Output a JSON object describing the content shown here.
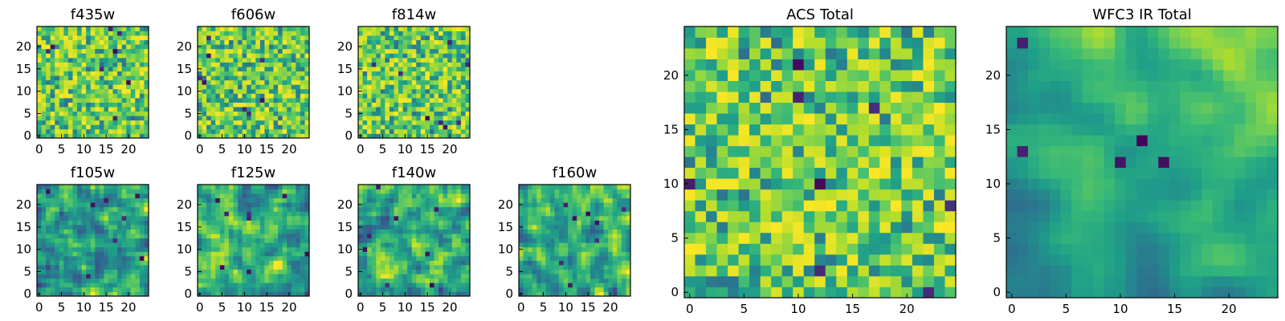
{
  "chart_data": [
    {
      "type": "heatmap",
      "title": "f435w",
      "size": 25,
      "xlim": [
        0,
        24
      ],
      "ylim": [
        0,
        24
      ],
      "xticks": [
        "0",
        "5",
        "10",
        "15",
        "20"
      ],
      "yticks": [
        "0",
        "5",
        "10",
        "15",
        "20"
      ],
      "colormap": "viridis",
      "texture": "noise",
      "seed": 11
    },
    {
      "type": "heatmap",
      "title": "f606w",
      "size": 25,
      "xlim": [
        0,
        24
      ],
      "ylim": [
        0,
        24
      ],
      "xticks": [
        "0",
        "5",
        "10",
        "15",
        "20"
      ],
      "yticks": [
        "0",
        "5",
        "10",
        "15",
        "20"
      ],
      "colormap": "viridis",
      "texture": "noise",
      "seed": 23
    },
    {
      "type": "heatmap",
      "title": "f814w",
      "size": 25,
      "xlim": [
        0,
        24
      ],
      "ylim": [
        0,
        24
      ],
      "xticks": [
        "0",
        "5",
        "10",
        "15",
        "20"
      ],
      "yticks": [
        "0",
        "5",
        "10",
        "15",
        "20"
      ],
      "colormap": "viridis",
      "texture": "noise",
      "seed": 37
    },
    {
      "type": "heatmap",
      "title": "f105w",
      "size": 25,
      "xlim": [
        0,
        24
      ],
      "ylim": [
        0,
        24
      ],
      "xticks": [
        "0",
        "5",
        "10",
        "15",
        "20"
      ],
      "yticks": [
        "0",
        "5",
        "10",
        "15",
        "20"
      ],
      "colormap": "viridis",
      "texture": "smooth",
      "seed": 41
    },
    {
      "type": "heatmap",
      "title": "f125w",
      "size": 25,
      "xlim": [
        0,
        24
      ],
      "ylim": [
        0,
        24
      ],
      "xticks": [
        "0",
        "5",
        "10",
        "15",
        "20"
      ],
      "yticks": [
        "0",
        "5",
        "10",
        "15",
        "20"
      ],
      "colormap": "viridis",
      "texture": "smooth",
      "seed": 53
    },
    {
      "type": "heatmap",
      "title": "f140w",
      "size": 25,
      "xlim": [
        0,
        24
      ],
      "ylim": [
        0,
        24
      ],
      "xticks": [
        "0",
        "5",
        "10",
        "15",
        "20"
      ],
      "yticks": [
        "0",
        "5",
        "10",
        "15",
        "20"
      ],
      "colormap": "viridis",
      "texture": "smooth",
      "seed": 67
    },
    {
      "type": "heatmap",
      "title": "f160w",
      "size": 25,
      "xlim": [
        0,
        24
      ],
      "ylim": [
        0,
        24
      ],
      "xticks": [
        "0",
        "5",
        "10",
        "15",
        "20"
      ],
      "yticks": [
        "0",
        "5",
        "10",
        "15",
        "20"
      ],
      "colormap": "viridis",
      "texture": "smooth",
      "seed": 79
    },
    {
      "type": "heatmap",
      "title": "ACS Total",
      "size": 25,
      "xlim": [
        0,
        24
      ],
      "ylim": [
        0,
        24
      ],
      "xticks": [
        "0",
        "5",
        "10",
        "15",
        "20"
      ],
      "yticks": [
        "0",
        "5",
        "10",
        "15",
        "20"
      ],
      "colormap": "viridis",
      "texture": "noise",
      "seed": 97
    },
    {
      "type": "heatmap",
      "title": "WFC3 IR Total",
      "size": 25,
      "xlim": [
        0,
        24
      ],
      "ylim": [
        0,
        24
      ],
      "xticks": [
        "0",
        "5",
        "10",
        "15",
        "20"
      ],
      "yticks": [
        "0",
        "5",
        "10",
        "15",
        "20"
      ],
      "colormap": "viridis",
      "texture": "gradient",
      "seed": 101
    }
  ]
}
